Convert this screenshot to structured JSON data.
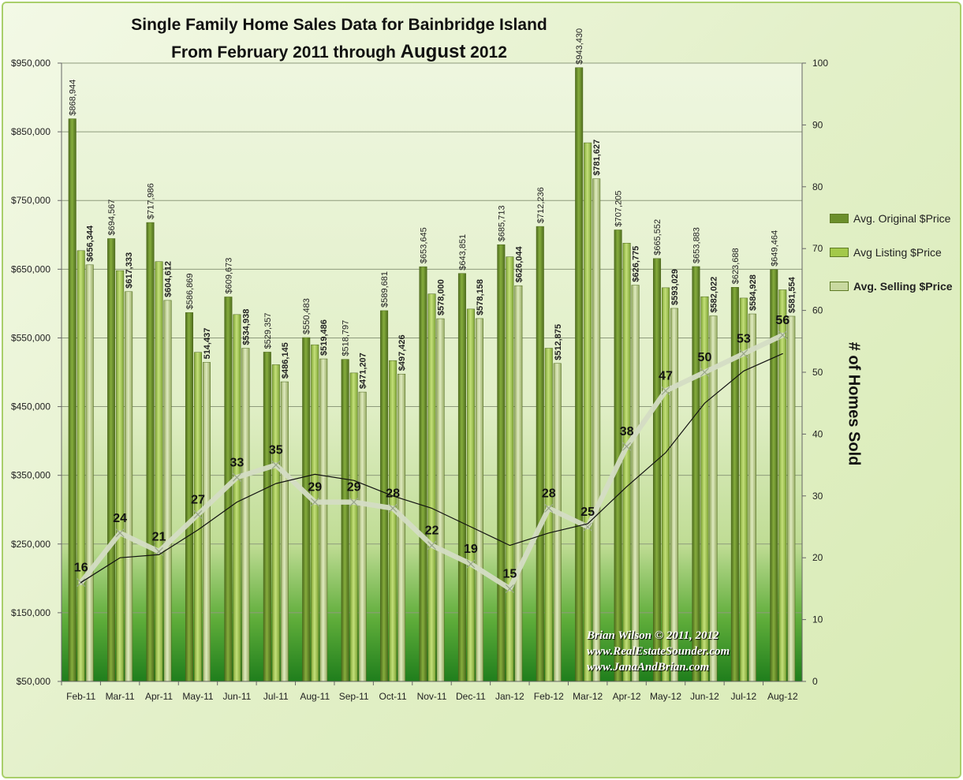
{
  "title": {
    "line1": "Single Family Home Sales Data for Bainbridge Island",
    "line2_prefix": "From February 2011 through ",
    "line2_highlight": "August",
    "line2_suffix": " 2012"
  },
  "credit": {
    "line1": "Brian Wilson  © 2011, 2012",
    "line2": "www.RealEstateSounder.com",
    "line3": "www.JanaAndBrian.com"
  },
  "legend": [
    {
      "label": "Avg. Original $Price",
      "color": "#6b8f2b",
      "bold": false
    },
    {
      "label": "Avg Listing $Price",
      "color": "#a3c94a",
      "bold": false
    },
    {
      "label": "Avg. Selling $Price",
      "color": "#c9d9a0",
      "bold": true
    }
  ],
  "chart_data": {
    "type": "bar",
    "title": "Single Family Home Sales Data for Bainbridge Island From February 2011 through August 2012",
    "categories": [
      "Feb-11",
      "Mar-11",
      "Apr-11",
      "May-11",
      "Jun-11",
      "Jul-11",
      "Aug-11",
      "Sep-11",
      "Oct-11",
      "Nov-11",
      "Dec-11",
      "Jan-12",
      "Feb-12",
      "Mar-12",
      "Apr-12",
      "May-12",
      "Jun-12",
      "Jul-12",
      "Aug-12"
    ],
    "ylim": [
      50000,
      950000
    ],
    "y_ticks": [
      "$50,000",
      "$150,000",
      "$250,000",
      "$350,000",
      "$450,000",
      "$550,000",
      "$650,000",
      "$750,000",
      "$850,000",
      "$950,000"
    ],
    "y2label": "# of Homes Sold",
    "y2lim": [
      0,
      100
    ],
    "y2_ticks": [
      "0",
      "10",
      "20",
      "30",
      "40",
      "50",
      "60",
      "70",
      "80",
      "90",
      "100"
    ],
    "grid": true,
    "legend_position": "right",
    "series": [
      {
        "name": "Avg. Original $Price",
        "color": "#6b8f2b",
        "values": [
          868944,
          694567,
          717986,
          586869,
          609673,
          529357,
          550483,
          518797,
          589681,
          653645,
          643851,
          685713,
          712236,
          943430,
          707205,
          665552,
          653883,
          623688,
          649464
        ],
        "labels": [
          "$868,944",
          "$694,567",
          "$717,986",
          "$586,869",
          "$609,673",
          "$529,357",
          "$550,483",
          "$518,797",
          "$589,681",
          "$653,645",
          "$643,851",
          "$685,713",
          "$712,236",
          "$943,430",
          "$707,205",
          "$665,552",
          "$653,883",
          "$623,688",
          "$649,464"
        ]
      },
      {
        "name": "Avg Listing $Price",
        "color": "#a3c94a",
        "values": [
          677000,
          648000,
          661000,
          529000,
          584000,
          511000,
          540000,
          499000,
          517000,
          614000,
          592000,
          668000,
          535000,
          834000,
          688000,
          623000,
          610000,
          608000,
          620000
        ],
        "labels": []
      },
      {
        "name": "Avg. Selling $Price",
        "color": "#c9d9a0",
        "values": [
          656344,
          617333,
          604612,
          514437,
          534938,
          486145,
          519486,
          471207,
          497426,
          578000,
          578158,
          626044,
          512875,
          781627,
          626775,
          593029,
          582022,
          584928,
          581554
        ],
        "labels": [
          "$656,344",
          "$617,333",
          "$604,612",
          "514,437",
          "$534,938",
          "$486,145",
          "$519,486",
          "$471,207",
          "$497,426",
          "$578,000",
          "$578,158",
          "$626,044",
          "$512,875",
          "$781,627",
          "$626,775",
          "$593,029",
          "$582,022",
          "$584,928",
          "$581,554"
        ]
      },
      {
        "name": "# of Homes Sold",
        "type": "line",
        "axis": "right",
        "color": "#d4dcc4",
        "values": [
          16,
          24,
          21,
          27,
          33,
          35,
          29,
          29,
          28,
          22,
          19,
          15,
          28,
          25,
          38,
          47,
          50,
          53,
          56
        ],
        "labels": [
          "16",
          "24",
          "21",
          "27",
          "33",
          "35",
          "29",
          "29",
          "28",
          "22",
          "19",
          "15",
          "28",
          "25",
          "38",
          "47",
          "50",
          "53",
          "56"
        ]
      },
      {
        "type": "line",
        "axis": "right",
        "color": "#111111",
        "values": [
          16,
          20,
          20.5,
          24.5,
          29,
          32,
          33.5,
          32.5,
          30,
          28,
          25,
          22,
          24,
          25.5,
          31.5,
          37,
          45,
          50.2,
          53
        ]
      }
    ]
  }
}
